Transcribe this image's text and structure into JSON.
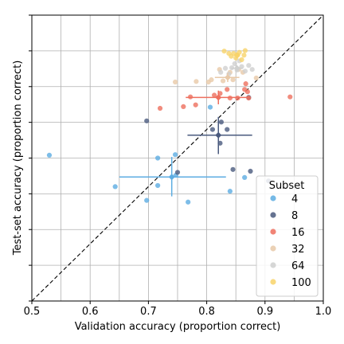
{
  "chart_data": {
    "type": "scatter",
    "xlabel": "Validation accuracy (proportion correct)",
    "ylabel": "Test-set accuracy (proportion correct)",
    "xlim": [
      0.5,
      1.0
    ],
    "ylim": [
      0.5,
      1.0
    ],
    "xticks": [
      "0.5",
      "0.6",
      "0.7",
      "0.8",
      "0.9",
      "1.0"
    ],
    "grid": true,
    "diagonal": "dashed y = x",
    "legend": {
      "title": "Subset",
      "placement": "lower-right"
    },
    "series": [
      {
        "name": "4",
        "color": "#5dade2",
        "points": [
          [
            0.53,
            0.755
          ],
          [
            0.643,
            0.7
          ],
          [
            0.697,
            0.676
          ],
          [
            0.716,
            0.75
          ],
          [
            0.716,
            0.702
          ],
          [
            0.746,
            0.756
          ],
          [
            0.747,
            0.72
          ],
          [
            0.768,
            0.673
          ],
          [
            0.806,
            0.839
          ],
          [
            0.84,
            0.692
          ],
          [
            0.865,
            0.716
          ]
        ],
        "mean": {
          "x": 0.74,
          "y": 0.717,
          "xerr": [
            0.09,
            0.093
          ],
          "yerr": [
            0.034,
            0.035
          ]
        }
      },
      {
        "name": "8",
        "color": "#4a5a7e",
        "points": [
          [
            0.697,
            0.815
          ],
          [
            0.75,
            0.725
          ],
          [
            0.81,
            0.8
          ],
          [
            0.823,
            0.776
          ],
          [
            0.825,
            0.813
          ],
          [
            0.835,
            0.8
          ],
          [
            0.845,
            0.73
          ],
          [
            0.872,
            0.856
          ],
          [
            0.875,
            0.727
          ],
          [
            0.906,
            0.71
          ]
        ],
        "mean": {
          "x": 0.82,
          "y": 0.79,
          "xerr": [
            0.053,
            0.058
          ],
          "yerr": [
            0.033,
            0.032
          ]
        }
      },
      {
        "name": "16",
        "color": "#ee6f5e",
        "points": [
          [
            0.72,
            0.837
          ],
          [
            0.76,
            0.84
          ],
          [
            0.772,
            0.857
          ],
          [
            0.781,
            0.843
          ],
          [
            0.813,
            0.86
          ],
          [
            0.823,
            0.863
          ],
          [
            0.835,
            0.87
          ],
          [
            0.84,
            0.855
          ],
          [
            0.853,
            0.855
          ],
          [
            0.865,
            0.87
          ],
          [
            0.867,
            0.88
          ],
          [
            0.87,
            0.866
          ],
          [
            0.872,
            0.855
          ],
          [
            0.943,
            0.857
          ]
        ],
        "mean": {
          "x": 0.82,
          "y": 0.856,
          "xerr": [
            0.056,
            0.054
          ],
          "yerr": [
            0.012,
            0.012
          ]
        }
      },
      {
        "name": "32",
        "color": "#e8c9a8",
        "points": [
          [
            0.746,
            0.883
          ],
          [
            0.782,
            0.884
          ],
          [
            0.803,
            0.883
          ],
          [
            0.808,
            0.887
          ],
          [
            0.822,
            0.905
          ],
          [
            0.828,
            0.885
          ],
          [
            0.84,
            0.9
          ],
          [
            0.845,
            0.887
          ],
          [
            0.855,
            0.905
          ],
          [
            0.862,
            0.9
          ],
          [
            0.885,
            0.89
          ]
        ],
        "mean": {
          "x": 0.836,
          "y": 0.891,
          "xerr": [
            0.022,
            0.02
          ],
          "yerr": [
            0.008,
            0.008
          ]
        }
      },
      {
        "name": "64",
        "color": "#cfd0cf",
        "points": [
          [
            0.824,
            0.9
          ],
          [
            0.832,
            0.907
          ],
          [
            0.838,
            0.897
          ],
          [
            0.843,
            0.908
          ],
          [
            0.848,
            0.915
          ],
          [
            0.852,
            0.904
          ],
          [
            0.856,
            0.92
          ],
          [
            0.86,
            0.91
          ],
          [
            0.866,
            0.902
          ],
          [
            0.872,
            0.912
          ],
          [
            0.878,
            0.905
          ]
        ],
        "mean": {
          "x": 0.852,
          "y": 0.907,
          "xerr": [
            0.01,
            0.01
          ],
          "yerr": [
            0.005,
            0.005
          ]
        }
      },
      {
        "name": "100",
        "color": "#f8d36a",
        "points": [
          [
            0.83,
            0.937
          ],
          [
            0.838,
            0.933
          ],
          [
            0.842,
            0.928
          ],
          [
            0.846,
            0.933
          ],
          [
            0.85,
            0.925
          ],
          [
            0.853,
            0.93
          ],
          [
            0.856,
            0.935
          ],
          [
            0.86,
            0.922
          ],
          [
            0.864,
            0.93
          ],
          [
            0.866,
            0.938
          ]
        ],
        "mean": {
          "x": 0.852,
          "y": 0.93,
          "xerr": [
            0.005,
            0.005
          ],
          "yerr": [
            0.003,
            0.003
          ]
        }
      }
    ]
  }
}
